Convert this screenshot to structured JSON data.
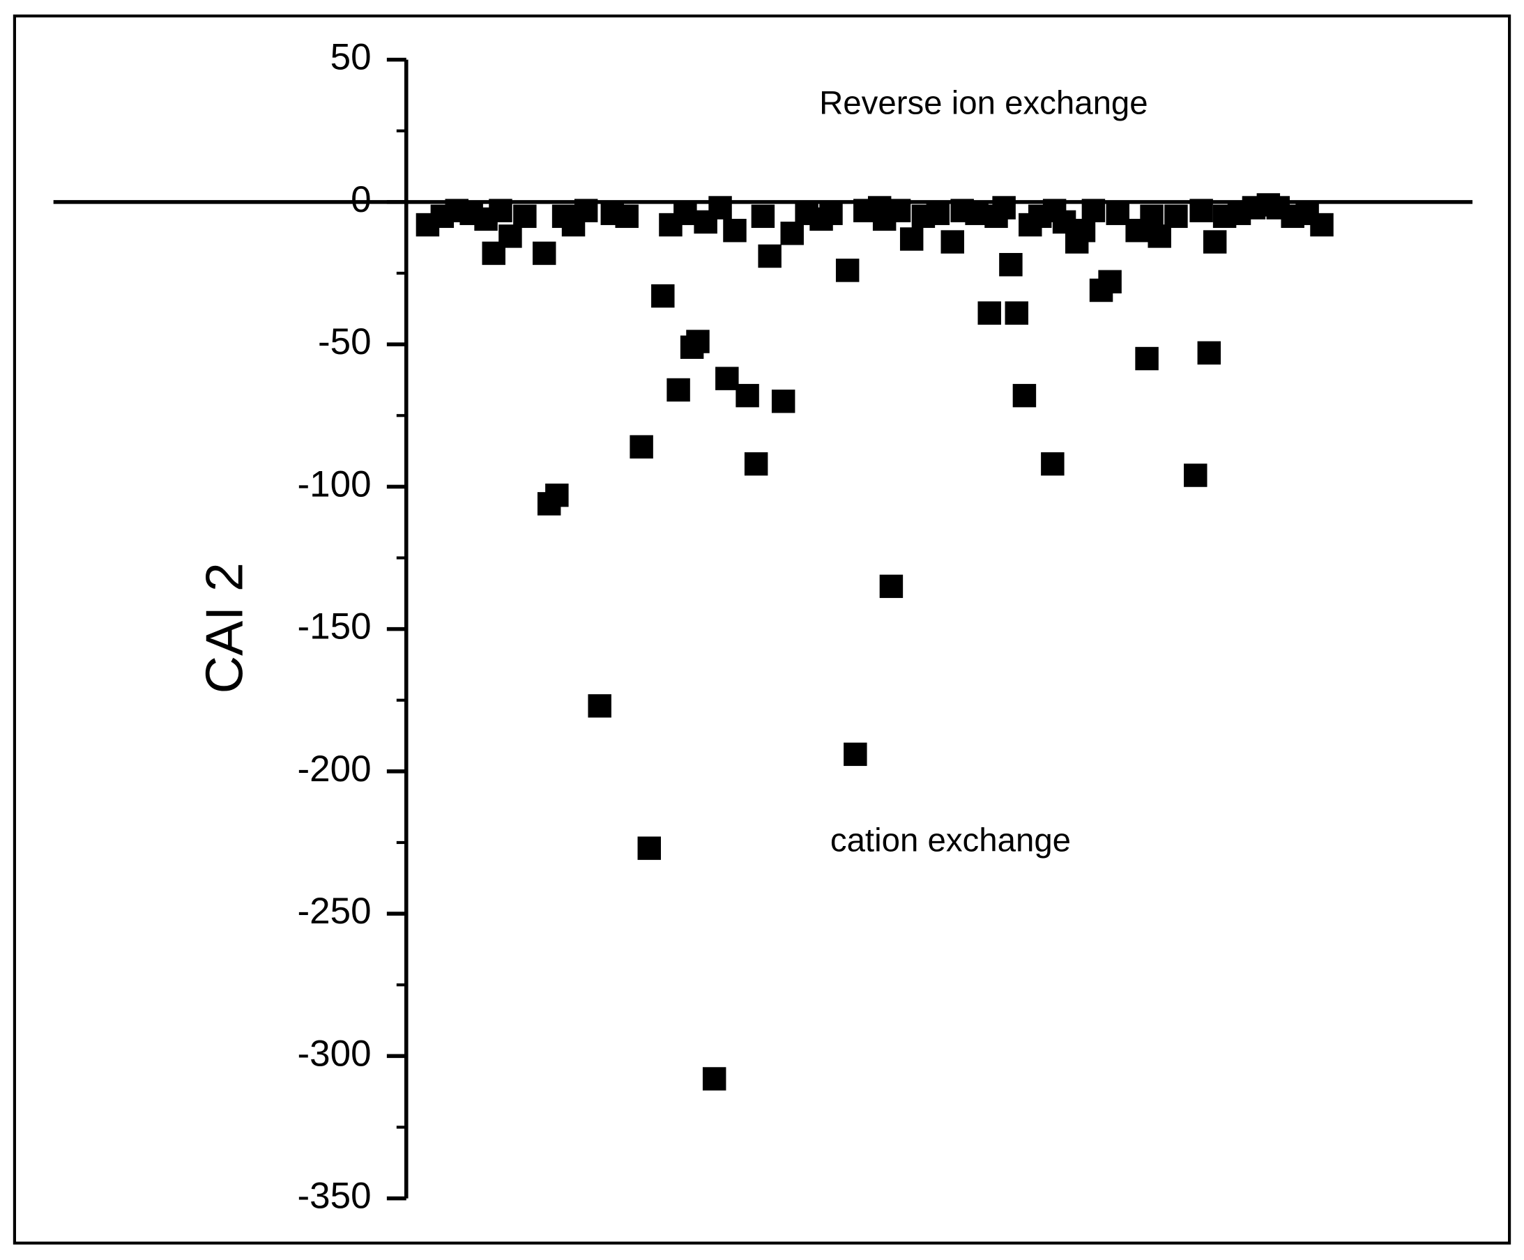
{
  "chart_data": {
    "type": "scatter",
    "y_label": "CAI 2",
    "annotations": [
      {
        "text": "Reverse ion exchange",
        "x": 957,
        "y": 34
      },
      {
        "text": "cation exchange",
        "x": 923,
        "y": -225
      }
    ],
    "x": [
      385,
      400,
      415,
      430,
      445,
      453,
      460,
      470,
      485,
      505,
      510,
      518,
      525,
      535,
      548,
      562,
      575,
      590,
      605,
      613,
      627,
      635,
      643,
      650,
      657,
      663,
      671,
      680,
      686,
      693,
      701,
      714,
      723,
      730,
      737,
      751,
      760,
      775,
      790,
      800,
      817,
      825,
      835,
      850,
      855,
      862,
      870,
      883,
      895,
      910,
      925,
      935,
      950,
      963,
      970,
      978,
      985,
      991,
      999,
      1005,
      1015,
      1028,
      1030,
      1040,
      1053,
      1060,
      1070,
      1078,
      1087,
      1095,
      1115,
      1125,
      1130,
      1138,
      1155,
      1175,
      1181,
      1189,
      1195,
      1205,
      1220,
      1235,
      1250,
      1260,
      1275,
      1290,
      1305
    ],
    "series": [
      {
        "name": "CAI 2",
        "color": "#000000",
        "values": [
          -8,
          -5,
          -3,
          -4,
          -6,
          -18,
          -3,
          -12,
          -5,
          -18,
          -106,
          -103,
          -5,
          -8,
          -3,
          -177,
          -4,
          -5,
          -86,
          -227,
          -33,
          -8,
          -66,
          -4,
          -51,
          -49,
          -7,
          -308,
          -2,
          -62,
          -10,
          -68,
          -92,
          -5,
          -19,
          -70,
          -11,
          -4,
          -6,
          -4,
          -24,
          -194,
          -3,
          -2,
          -6,
          -135,
          -3,
          -13,
          -5,
          -4,
          -14,
          -3,
          -4,
          -39,
          -5,
          -2,
          -22,
          -39,
          -68,
          -8,
          -5,
          -92,
          -3,
          -7,
          -14,
          -10,
          -3,
          -31,
          -28,
          -4,
          -10,
          -55,
          -5,
          -12,
          -5,
          -96,
          -3,
          -53,
          -14,
          -5,
          -4,
          -2,
          -1,
          -2,
          -5,
          -4,
          -8
        ]
      }
    ],
    "xlim": [
      0,
      1460
    ],
    "ylim": [
      -350,
      50
    ],
    "yticks": [
      50,
      0,
      -50,
      -100,
      -150,
      -200,
      -250,
      -300,
      -350
    ],
    "yminorticks": [
      25,
      -25,
      -75,
      -125,
      -175,
      -225,
      -275,
      -325
    ],
    "zero_line": true
  }
}
